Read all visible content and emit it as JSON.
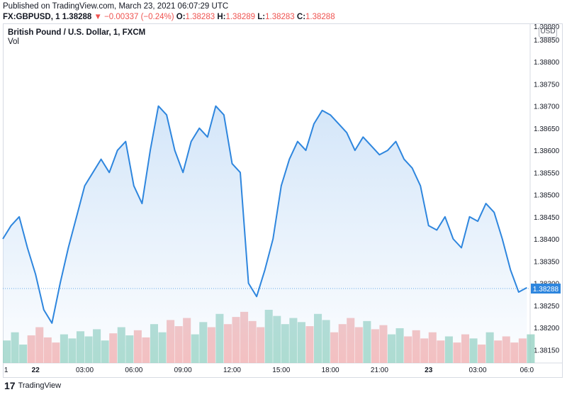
{
  "header": {
    "published": "Published on TradingView.com, March 23, 2021 06:07:29 UTC",
    "symbol": "FX:GBPUSD, 1",
    "last": "1.38288",
    "change": "−0.00337 (−0.24%)",
    "o_label": "O:",
    "o": "1.38283",
    "h_label": "H:",
    "h": "1.38289",
    "l_label": "L:",
    "l": "1.38283",
    "c_label": "C:",
    "c": "1.38288"
  },
  "legend": {
    "title": "British Pound / U.S. Dollar, 1, FXCM",
    "vol": "Vol"
  },
  "currency": "USD",
  "footer": {
    "logo": "17",
    "brand": "TradingView"
  },
  "colors": {
    "line": "#2e86de",
    "fill_top": "#cfe3f8",
    "price_tag": "#2e86de",
    "vol_up": "#8fcfbf",
    "vol_down": "#f2a8a8"
  },
  "chart_data": {
    "type": "area",
    "ylim": [
      1.3812,
      1.38885
    ],
    "y_ticks": [
      "1.38880",
      "1.38850",
      "1.38800",
      "1.38750",
      "1.38700",
      "1.38650",
      "1.38600",
      "1.38550",
      "1.38500",
      "1.38450",
      "1.38400",
      "1.38350",
      "1.38300",
      "1.38250",
      "1.38200",
      "1.38150"
    ],
    "y_tick_values": [
      1.3888,
      1.3885,
      1.388,
      1.3875,
      1.387,
      1.3865,
      1.386,
      1.3855,
      1.385,
      1.3845,
      1.384,
      1.3835,
      1.383,
      1.3825,
      1.382,
      1.3815
    ],
    "x_ticks": [
      "1",
      "22",
      "03:00",
      "06:00",
      "09:00",
      "12:00",
      "15:00",
      "18:00",
      "21:00",
      "23",
      "03:00",
      "06:0"
    ],
    "x_tick_hours": [
      -1.8,
      0,
      3,
      6,
      9,
      12,
      15,
      18,
      21,
      24,
      27,
      30
    ],
    "last_price": 1.38288,
    "last_price_label": "1.38288",
    "series": [
      {
        "x": [
          -2.0,
          -1.5,
          -1.0,
          -0.5,
          0.0,
          0.5,
          1.0,
          1.5,
          2.0,
          2.5,
          3.0,
          3.5,
          4.0,
          4.5,
          5.0,
          5.5,
          6.0,
          6.5,
          7.0,
          7.5,
          8.0,
          8.5,
          9.0,
          9.5,
          10.0,
          10.5,
          11.0,
          11.5,
          12.0,
          12.5,
          13.0,
          13.5,
          14.0,
          14.5,
          15.0,
          15.5,
          16.0,
          16.5,
          17.0,
          17.5,
          18.0,
          18.5,
          19.0,
          19.5,
          20.0,
          20.5,
          21.0,
          21.5,
          22.0,
          22.5,
          23.0,
          23.5,
          24.0,
          24.5,
          25.0,
          25.5,
          26.0,
          26.5,
          27.0,
          27.5,
          28.0,
          28.5,
          29.0,
          29.5,
          30.0
        ],
        "values": [
          1.384,
          1.3843,
          1.3845,
          1.3838,
          1.3832,
          1.3824,
          1.3821,
          1.383,
          1.3838,
          1.3845,
          1.3852,
          1.3855,
          1.3858,
          1.3855,
          1.386,
          1.3862,
          1.3852,
          1.3848,
          1.386,
          1.387,
          1.3868,
          1.386,
          1.3855,
          1.3862,
          1.3865,
          1.3863,
          1.387,
          1.3868,
          1.3857,
          1.3855,
          1.383,
          1.3827,
          1.3833,
          1.384,
          1.3852,
          1.3858,
          1.3862,
          1.386,
          1.3866,
          1.3869,
          1.3868,
          1.3866,
          1.3864,
          1.386,
          1.3863,
          1.3861,
          1.3859,
          1.386,
          1.3862,
          1.3858,
          1.3856,
          1.3852,
          1.3843,
          1.3842,
          1.3845,
          1.384,
          1.3838,
          1.3845,
          1.3844,
          1.3848,
          1.3846,
          1.384,
          1.3833,
          1.3828,
          1.3829
        ]
      }
    ],
    "volume": [
      22,
      30,
      18,
      27,
      35,
      25,
      20,
      28,
      24,
      31,
      26,
      33,
      22,
      29,
      35,
      27,
      32,
      25,
      38,
      30,
      42,
      36,
      44,
      28,
      40,
      35,
      48,
      38,
      45,
      50,
      41,
      35,
      52,
      46,
      38,
      44,
      40,
      36,
      48,
      42,
      30,
      38,
      44,
      35,
      41,
      33,
      37,
      28,
      34,
      26,
      32,
      24,
      30,
      22,
      26,
      20,
      28,
      24,
      18,
      30,
      22,
      26,
      20,
      24,
      28
    ]
  }
}
